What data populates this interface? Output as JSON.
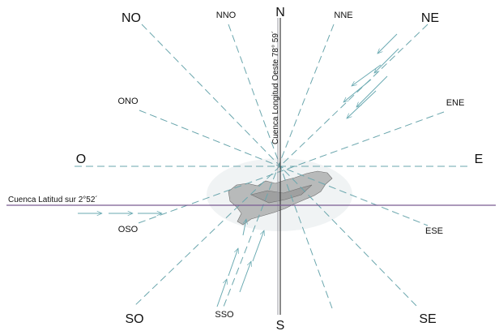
{
  "directions": [
    {
      "key": "N",
      "label": "N",
      "size": "major"
    },
    {
      "key": "NNE",
      "label": "NNE",
      "size": "minor"
    },
    {
      "key": "NE",
      "label": "NE",
      "size": "major"
    },
    {
      "key": "ENE",
      "label": "ENE",
      "size": "minor"
    },
    {
      "key": "E",
      "label": "E",
      "size": "major"
    },
    {
      "key": "ESE",
      "label": "ESE",
      "size": "minor"
    },
    {
      "key": "SE",
      "label": "SE",
      "size": "major"
    },
    {
      "key": "SSO",
      "label": "SSO",
      "size": "minor"
    },
    {
      "key": "S",
      "label": "S",
      "size": "major"
    },
    {
      "key": "SO",
      "label": "SO",
      "size": "major"
    },
    {
      "key": "OSO",
      "label": "OSO",
      "size": "minor"
    },
    {
      "key": "O",
      "label": "O",
      "size": "major"
    },
    {
      "key": "ONO",
      "label": "ONO",
      "size": "minor"
    },
    {
      "key": "NO",
      "label": "NO",
      "size": "major"
    },
    {
      "key": "NNO",
      "label": "NNO",
      "size": "minor"
    }
  ],
  "annotations": {
    "longitude": "Cuenca Longitud Oeste 78° 59´",
    "latitude": "Cuenca Latitud sur 2°52´"
  },
  "colors": {
    "dashed_lines": "#6aa6ad",
    "wind_arrows": "#6aaab2",
    "latitude_line": "#7a5c92",
    "city_area": "#8a8a8a"
  },
  "wind_groups": [
    {
      "from": "NE",
      "arrow_count": 6
    },
    {
      "from": "O",
      "arrow_count": 3
    },
    {
      "from": "SSO",
      "arrow_count": 5
    }
  ]
}
